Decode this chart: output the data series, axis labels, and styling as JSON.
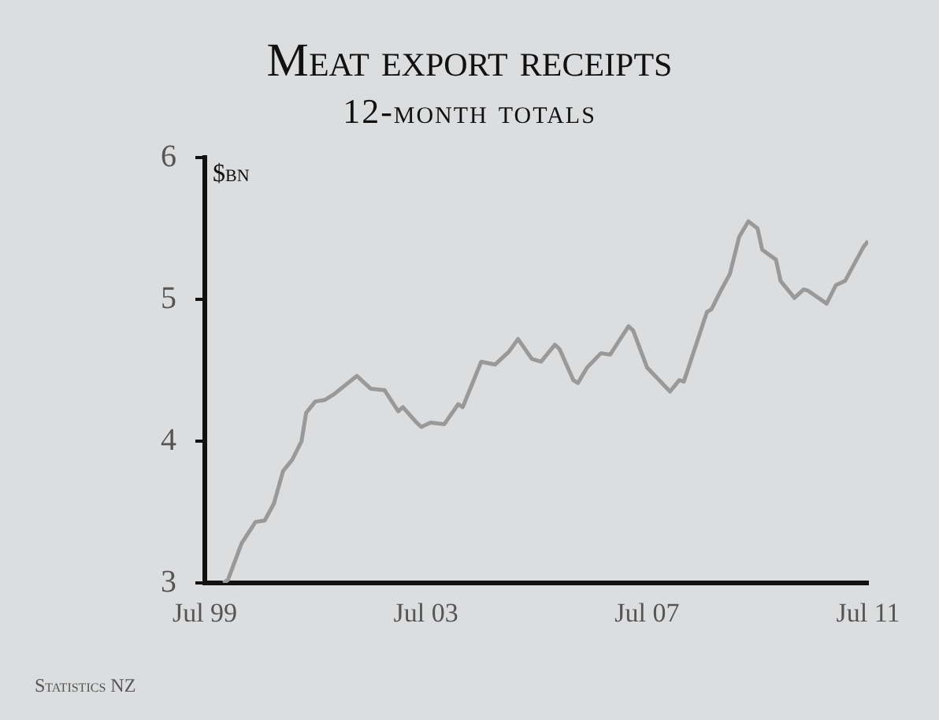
{
  "chart_data": {
    "type": "line",
    "title": "Meat export receipts",
    "subtitle": "12-month totals",
    "ylabel": "$bn",
    "annotations": [
      "Statistics NZ"
    ],
    "x": [
      "1999-11",
      "1999-12",
      "2000-03",
      "2000-06",
      "2000-08",
      "2000-10",
      "2000-12",
      "2001-02",
      "2001-04",
      "2001-05",
      "2001-07",
      "2001-09",
      "2001-11",
      "2002-04",
      "2002-07",
      "2002-10",
      "2003-01",
      "2003-02",
      "2003-05",
      "2003-06",
      "2003-08",
      "2003-11",
      "2004-02",
      "2004-03",
      "2004-07",
      "2004-10",
      "2005-01",
      "2005-03",
      "2005-06",
      "2005-08",
      "2005-11",
      "2005-12",
      "2006-03",
      "2006-04",
      "2006-06",
      "2006-09",
      "2006-11",
      "2007-01",
      "2007-03",
      "2007-04",
      "2007-07",
      "2007-12",
      "2008-02",
      "2008-03",
      "2008-08",
      "2008-09",
      "2008-11",
      "2009-01",
      "2009-03",
      "2009-05",
      "2009-07",
      "2009-08",
      "2009-11",
      "2009-12",
      "2010-03",
      "2010-05",
      "2010-06",
      "2010-10",
      "2010-12",
      "2011-02",
      "2011-06",
      "2011-07"
    ],
    "series": [
      {
        "color": "#999999",
        "values": [
          3.0,
          3.02,
          3.28,
          3.43,
          3.44,
          3.56,
          3.79,
          3.87,
          4.0,
          4.2,
          4.28,
          4.29,
          4.33,
          4.46,
          4.37,
          4.36,
          4.21,
          4.24,
          4.13,
          4.1,
          4.13,
          4.12,
          4.26,
          4.24,
          4.56,
          4.54,
          4.63,
          4.72,
          4.58,
          4.56,
          4.68,
          4.65,
          4.43,
          4.41,
          4.52,
          4.62,
          4.61,
          4.71,
          4.81,
          4.78,
          4.52,
          4.35,
          4.43,
          4.42,
          4.91,
          4.93,
          5.06,
          5.18,
          5.44,
          5.55,
          5.5,
          5.35,
          5.28,
          5.13,
          5.01,
          5.07,
          5.06,
          4.97,
          5.1,
          5.13,
          5.37,
          5.41
        ]
      }
    ],
    "xlim": [
      "1999-07",
      "2011-07"
    ],
    "xticks": [
      {
        "value": "1999-07",
        "label": "Jul 99"
      },
      {
        "value": "2003-07",
        "label": "Jul 03"
      },
      {
        "value": "2007-07",
        "label": "Jul 07"
      },
      {
        "value": "2011-07",
        "label": "Jul 11"
      }
    ],
    "ylim": [
      3,
      6
    ],
    "yticks": [
      3,
      4,
      5,
      6
    ],
    "grid": false,
    "legend": false,
    "marker": "none",
    "line_style": "solid"
  }
}
